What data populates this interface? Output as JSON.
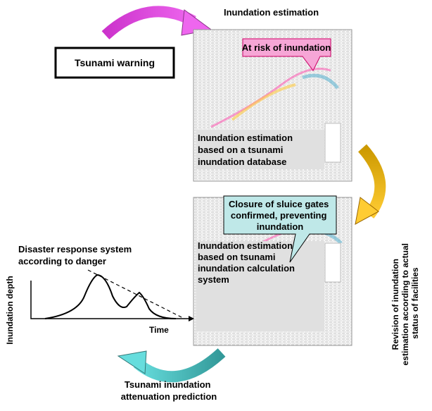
{
  "top_label": "Inundation estimation",
  "warning": "Tsunami warning",
  "risk_callout": "At risk of inundation",
  "map1_caption": [
    "Inundation estimation",
    "based on a tsunami",
    "inundation database"
  ],
  "revision_label": [
    "Revision of inundation",
    "estimation according to actual",
    "status of facilities"
  ],
  "sluice_callout": [
    "Closure of sluice gates",
    "confirmed, preventing",
    "inundation"
  ],
  "response_label": [
    "Disaster response system",
    "according to danger"
  ],
  "graph": {
    "y_label": "Inundation depth",
    "x_label": "Time"
  },
  "map2_caption": [
    "Inundation estimation",
    "based on tsunami",
    "inundation calculation",
    "system"
  ],
  "bottom_label": [
    "Tsunami inundation",
    "attenuation prediction"
  ]
}
